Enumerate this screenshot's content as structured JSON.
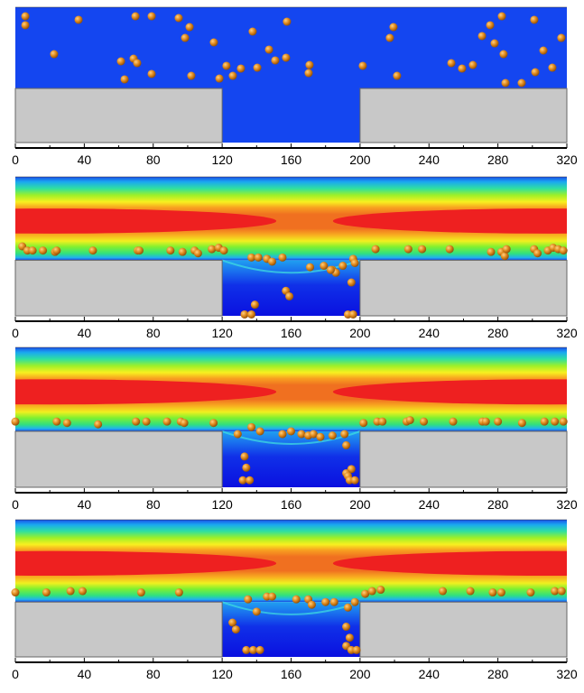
{
  "chart_data": {
    "type": "heatmap",
    "description_units": "x along channel (0-320), y height from cavity bottom (0) to top wall (100); step top at y=40; cavity spans x 120-200",
    "xlim": [
      0,
      320
    ],
    "ylim": [
      0,
      100
    ],
    "step_height": 40,
    "cavity": [
      120,
      200
    ],
    "x_ticks": [
      0,
      40,
      80,
      120,
      160,
      200,
      240,
      280,
      320
    ],
    "colors": {
      "uniform": "#1446f0",
      "wall": "#c8c8c8",
      "particle": "#e08a1e"
    },
    "panels": [
      {
        "field": "uniform",
        "particles": [
          [
            5.8,
            93.3
          ],
          [
            5.8,
            86.7
          ],
          [
            36.7,
            90.7
          ],
          [
            69.7,
            93.3
          ],
          [
            79.1,
            93.3
          ],
          [
            94.8,
            92
          ],
          [
            101.1,
            85.3
          ],
          [
            98.5,
            77.3
          ],
          [
            115.2,
            74
          ],
          [
            137.7,
            82
          ],
          [
            157.6,
            89.3
          ],
          [
            22.5,
            65.3
          ],
          [
            61.3,
            60
          ],
          [
            68.6,
            62
          ],
          [
            70.7,
            58.7
          ],
          [
            63.4,
            46.7
          ],
          [
            79.1,
            50.7
          ],
          [
            102.1,
            49.3
          ],
          [
            118.4,
            47.3
          ],
          [
            122.5,
            56.7
          ],
          [
            126.2,
            49.3
          ],
          [
            130.9,
            54.7
          ],
          [
            140.4,
            55.3
          ],
          [
            147.2,
            68.7
          ],
          [
            150.8,
            60.7
          ],
          [
            157.1,
            62.7
          ],
          [
            170.7,
            57.3
          ],
          [
            170.2,
            51.3
          ],
          [
            201.6,
            56.7
          ],
          [
            217.3,
            77.3
          ],
          [
            219.4,
            85.3
          ],
          [
            221.5,
            49.3
          ],
          [
            253,
            58.7
          ],
          [
            259.2,
            54.7
          ],
          [
            265.5,
            57.3
          ],
          [
            270.8,
            78.7
          ],
          [
            275.5,
            86.7
          ],
          [
            282.3,
            93.3
          ],
          [
            278.1,
            73.3
          ],
          [
            283.3,
            65.3
          ],
          [
            301.1,
            90.7
          ],
          [
            306.4,
            68
          ],
          [
            311.6,
            55.3
          ],
          [
            316.8,
            77.3
          ],
          [
            293.8,
            44
          ],
          [
            284.4,
            44
          ],
          [
            301.7,
            52
          ]
        ]
      },
      {
        "field": "velocity",
        "particles": [
          [
            4,
            50
          ],
          [
            7,
            47
          ],
          [
            10,
            47
          ],
          [
            16,
            47
          ],
          [
            23,
            46
          ],
          [
            24,
            47
          ],
          [
            45,
            47
          ],
          [
            71,
            47
          ],
          [
            72,
            47
          ],
          [
            90,
            47
          ],
          [
            97,
            46
          ],
          [
            104,
            47
          ],
          [
            106,
            45
          ],
          [
            114,
            48
          ],
          [
            118,
            49
          ],
          [
            121,
            47
          ],
          [
            137,
            42
          ],
          [
            141,
            42
          ],
          [
            146,
            41
          ],
          [
            149,
            39
          ],
          [
            155,
            42
          ],
          [
            171,
            35
          ],
          [
            179,
            36
          ],
          [
            184,
            33
          ],
          [
            186,
            31
          ],
          [
            190,
            36
          ],
          [
            196,
            41
          ],
          [
            197,
            38
          ],
          [
            183,
            33
          ],
          [
            195,
            24
          ],
          [
            157,
            18
          ],
          [
            159,
            14
          ],
          [
            139,
            8
          ],
          [
            133,
            1
          ],
          [
            137,
            1
          ],
          [
            193,
            1
          ],
          [
            196,
            1
          ],
          [
            209,
            48
          ],
          [
            228,
            48
          ],
          [
            236,
            48
          ],
          [
            252,
            48
          ],
          [
            276,
            46
          ],
          [
            282,
            46
          ],
          [
            284,
            43
          ],
          [
            285,
            48
          ],
          [
            301,
            48
          ],
          [
            303,
            45
          ],
          [
            309,
            47
          ],
          [
            312,
            49
          ],
          [
            315,
            48
          ],
          [
            318,
            47
          ]
        ]
      },
      {
        "field": "velocity",
        "particles": [
          [
            0,
            47
          ],
          [
            24,
            47
          ],
          [
            30,
            46
          ],
          [
            48,
            45
          ],
          [
            70,
            47
          ],
          [
            76,
            47
          ],
          [
            88,
            47
          ],
          [
            96,
            47
          ],
          [
            98,
            46
          ],
          [
            115,
            46
          ],
          [
            129,
            38
          ],
          [
            137,
            43
          ],
          [
            142,
            40
          ],
          [
            155,
            38
          ],
          [
            160,
            40
          ],
          [
            166,
            38
          ],
          [
            170,
            37
          ],
          [
            173,
            38
          ],
          [
            177,
            36
          ],
          [
            184,
            37
          ],
          [
            191,
            38
          ],
          [
            192,
            30
          ],
          [
            133,
            22
          ],
          [
            134,
            14
          ],
          [
            132,
            5
          ],
          [
            136,
            5
          ],
          [
            195,
            13
          ],
          [
            192,
            10
          ],
          [
            193,
            8
          ],
          [
            194,
            5
          ],
          [
            197,
            5
          ],
          [
            202,
            46
          ],
          [
            210,
            47
          ],
          [
            213,
            47
          ],
          [
            227,
            47
          ],
          [
            229,
            48
          ],
          [
            237,
            47
          ],
          [
            254,
            47
          ],
          [
            271,
            47
          ],
          [
            273,
            47
          ],
          [
            280,
            47
          ],
          [
            294,
            46
          ],
          [
            307,
            47
          ],
          [
            313,
            47
          ],
          [
            318,
            47
          ]
        ]
      },
      {
        "field": "velocity",
        "particles": [
          [
            0,
            47
          ],
          [
            18,
            47
          ],
          [
            32,
            48
          ],
          [
            39,
            48
          ],
          [
            73,
            47
          ],
          [
            95,
            47
          ],
          [
            135,
            42
          ],
          [
            146,
            44
          ],
          [
            149,
            44
          ],
          [
            163,
            42
          ],
          [
            170,
            42
          ],
          [
            172,
            38
          ],
          [
            180,
            40
          ],
          [
            185,
            40
          ],
          [
            193,
            36
          ],
          [
            197,
            40
          ],
          [
            128,
            20
          ],
          [
            140,
            33
          ],
          [
            126,
            25
          ],
          [
            134,
            5
          ],
          [
            138,
            5
          ],
          [
            142,
            5
          ],
          [
            192,
            22
          ],
          [
            194,
            14
          ],
          [
            192,
            8
          ],
          [
            195,
            5
          ],
          [
            198,
            5
          ],
          [
            203,
            46
          ],
          [
            207,
            48
          ],
          [
            212,
            49
          ],
          [
            248,
            48
          ],
          [
            264,
            48
          ],
          [
            277,
            47
          ],
          [
            282,
            47
          ],
          [
            299,
            47
          ],
          [
            313,
            48
          ],
          [
            317,
            48
          ]
        ]
      }
    ]
  }
}
